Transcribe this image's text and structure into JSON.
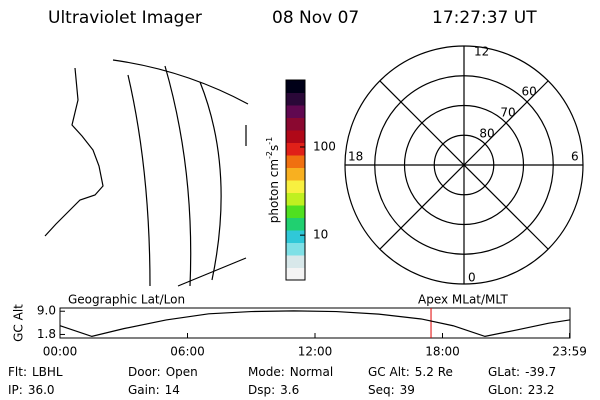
{
  "header": {
    "title": "Ultraviolet Imager",
    "date": "08 Nov 07",
    "time": "17:27:37 UT"
  },
  "colorbar": {
    "label": [
      "photon cm",
      "-2",
      "s",
      "-1"
    ],
    "scale": "log",
    "lim": [
      3.1,
      575
    ],
    "ticks": [
      10,
      100
    ],
    "colors": [
      "#f4f4f4",
      "#d8e8ea",
      "#7fe0e6",
      "#30c8d8",
      "#20d070",
      "#50e020",
      "#c0f020",
      "#f8f040",
      "#f8b020",
      "#f07010",
      "#e02018",
      "#b00818",
      "#8a0830",
      "#600850",
      "#2a0838",
      "#000018"
    ]
  },
  "polar": {
    "rings": [
      {
        "value": 60,
        "label": "60"
      },
      {
        "value": 70,
        "label": "70"
      },
      {
        "value": 80,
        "label": "80"
      }
    ],
    "outer": 50,
    "hours": {
      "top": "12",
      "bottom": "0",
      "left": "18",
      "right": "6"
    }
  },
  "timeline": {
    "left_label": "Geographic Lat/Lon",
    "right_label": "Apex MLat/MLT",
    "ylabel": "GC Alt",
    "xlim": [
      0,
      24
    ],
    "ylim": [
      0.7,
      10
    ],
    "xticks": [
      {
        "value": 0,
        "label": "00:00"
      },
      {
        "value": 6,
        "label": "06:00"
      },
      {
        "value": 12,
        "label": "12:00"
      },
      {
        "value": 18,
        "label": "18:00"
      },
      {
        "value": 23.98,
        "label": "23:59"
      }
    ],
    "yticks": [
      {
        "value": 9,
        "label": "9.0"
      },
      {
        "value": 1.8,
        "label": "1.8"
      }
    ],
    "x": [
      0,
      1.5,
      3,
      5,
      7,
      9,
      11,
      13,
      15,
      17,
      18.5,
      20,
      21.5,
      23,
      23.98
    ],
    "values": [
      4.5,
      1.2,
      3.6,
      6.3,
      8.2,
      8.9,
      9.1,
      8.9,
      8.1,
      6.6,
      4.5,
      1.2,
      3.2,
      5.3,
      6.3
    ],
    "marker": 17.46,
    "marker_color": "#e00000"
  },
  "footer": [
    [
      [
        "Flt:",
        "LBHL"
      ],
      [
        "Door:",
        "Open"
      ],
      [
        "Mode:",
        "Normal"
      ],
      [
        "GC Alt:",
        "5.2 Re"
      ],
      [
        "GLat:",
        "-39.7"
      ]
    ],
    [
      [
        "IP:",
        "36.0"
      ],
      [
        "Gain:",
        "14"
      ],
      [
        "Dsp:",
        "3.6"
      ],
      [
        "Seq:",
        "39"
      ],
      [
        "GLon:",
        "23.2"
      ]
    ]
  ]
}
